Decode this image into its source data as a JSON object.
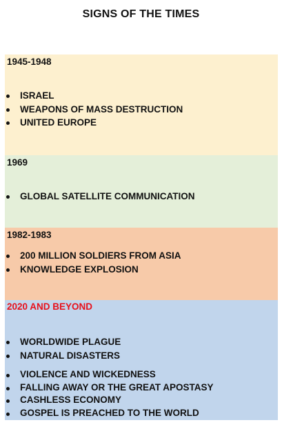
{
  "title": "SIGNS OF THE TIMES",
  "colors": {
    "section_1": "#fdf0cf",
    "section_2": "#e4efd9",
    "section_3": "#f7caa9",
    "section_4": "#c1d5ec",
    "heading_red": "#e8101a"
  },
  "sections": [
    {
      "heading": "1945-1948",
      "items": [
        "ISRAEL",
        "WEAPONS OF MASS DESTRUCTION",
        "UNITED EUROPE"
      ]
    },
    {
      "heading": "1969",
      "items": [
        "GLOBAL SATELLITE COMMUNICATION"
      ]
    },
    {
      "heading": "1982-1983",
      "items": [
        "200 MILLION SOLDIERS FROM ASIA",
        "KNOWLEDGE EXPLOSION"
      ]
    },
    {
      "heading": "2020 AND BEYOND",
      "items_group_1": [
        "WORLDWIDE PLAGUE",
        "NATURAL DISASTERS"
      ],
      "items_group_2": [
        "VIOLENCE AND WICKEDNESS",
        "FALLING AWAY OR THE GREAT APOSTASY",
        "CASHLESS ECONOMY",
        "GOSPEL IS PREACHED TO THE WORLD"
      ]
    }
  ]
}
